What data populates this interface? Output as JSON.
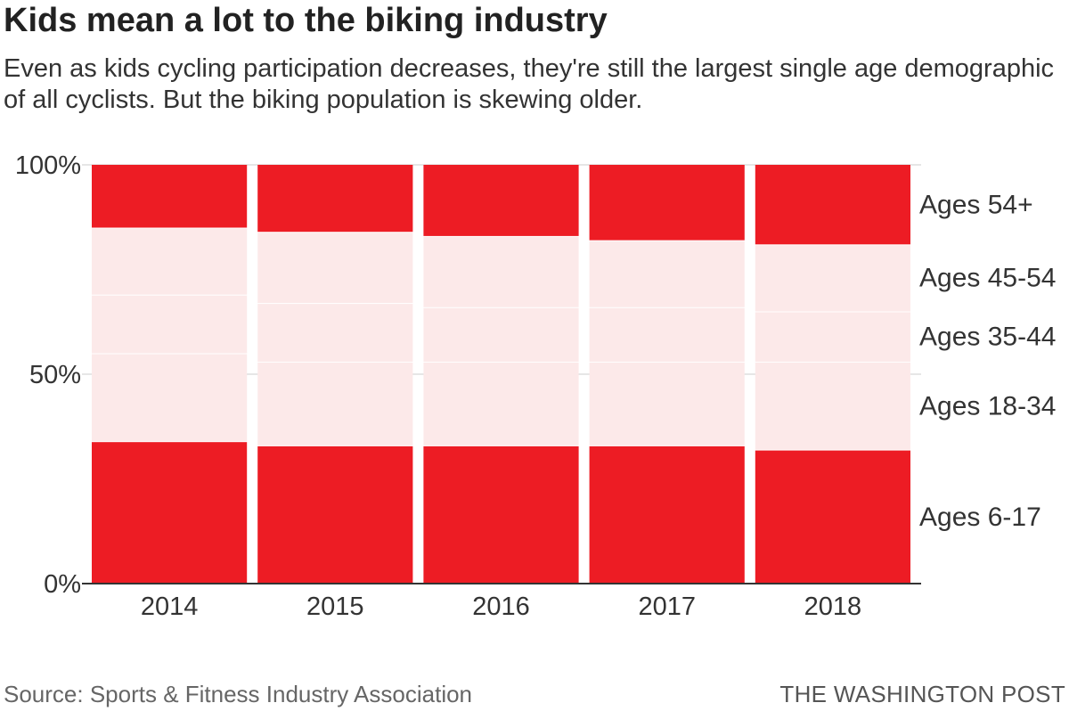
{
  "header": {
    "title": "Kids mean a lot to the biking industry",
    "subtitle": "Even as kids cycling participation decreases, they're still the largest single age demographic of all cyclists. But the biking population is skewing older."
  },
  "footer": {
    "source": "Source: Sports & Fitness Industry Association",
    "credit": "THE WASHINGTON POST"
  },
  "colors": {
    "strong": "#ed1c24",
    "light": "#fce9e9",
    "axis": "#333333",
    "grid": "#cccccc"
  },
  "chart_data": {
    "type": "bar",
    "stacked": true,
    "orientation": "vertical",
    "normalized_percent": true,
    "title": "Kids mean a lot to the biking industry",
    "categories": [
      "2014",
      "2015",
      "2016",
      "2017",
      "2018"
    ],
    "series": [
      {
        "name": "Ages 6-17",
        "label": "Ages 6-17",
        "emphasis": true,
        "values": [
          34,
          33,
          33,
          33,
          32
        ]
      },
      {
        "name": "Ages 18-34",
        "label": "Ages 18-34",
        "emphasis": false,
        "values": [
          21,
          20,
          20,
          20,
          21
        ]
      },
      {
        "name": "Ages 35-44",
        "label": "Ages 35-44",
        "emphasis": false,
        "values": [
          14,
          14,
          13,
          13,
          12
        ]
      },
      {
        "name": "Ages 45-54",
        "label": "Ages 45-54",
        "emphasis": false,
        "values": [
          16,
          17,
          17,
          16,
          16
        ]
      },
      {
        "name": "Ages 54+",
        "label": "Ages 54+",
        "emphasis": true,
        "values": [
          15,
          16,
          17,
          18,
          19
        ]
      }
    ],
    "y_ticks": [
      {
        "value": 0,
        "label": "0%"
      },
      {
        "value": 50,
        "label": "50%"
      },
      {
        "value": 100,
        "label": "100%"
      }
    ],
    "ylim": [
      0,
      100
    ],
    "xlabel": "",
    "ylabel": "",
    "legend": "direct labels right"
  }
}
